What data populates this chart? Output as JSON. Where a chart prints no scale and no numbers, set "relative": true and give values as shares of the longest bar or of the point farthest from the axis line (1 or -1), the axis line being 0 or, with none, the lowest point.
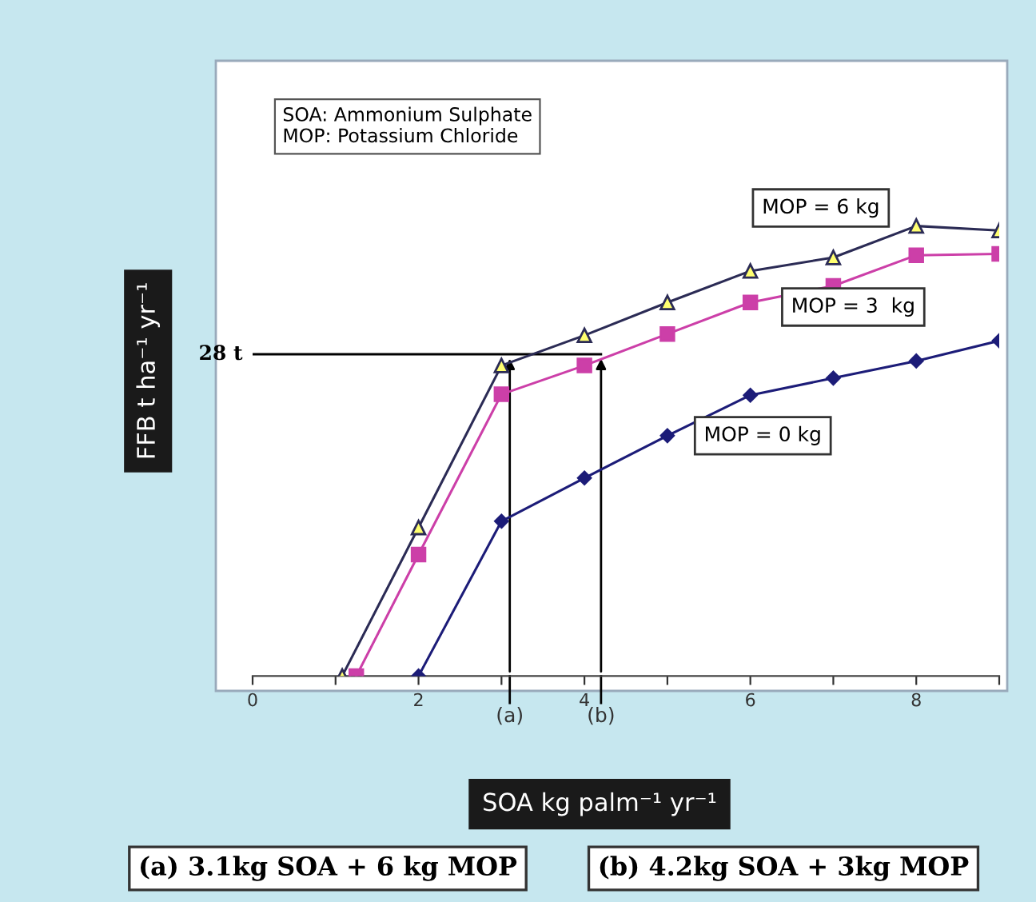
{
  "chart_data": {
    "type": "line",
    "relative": true,
    "xlabel": "SOA kg palm⁻¹ yr⁻¹",
    "ylabel": "FFB t ha⁻¹ yr⁻¹",
    "xlim": [
      0,
      9
    ],
    "xticks": [
      0,
      {
        "value": 1,
        "label": null
      },
      2,
      {
        "value": 3,
        "label": null
      },
      4,
      {
        "value": 5,
        "label": null
      },
      6,
      {
        "value": 7,
        "label": null
      },
      8,
      {
        "value": 9,
        "label": null
      }
    ],
    "legend": false,
    "grid": false,
    "line_style": "solid",
    "series": [
      {
        "name": "MOP = 6 kg",
        "color": "#2b2b55",
        "marker": "triangle",
        "x": [
          1.08,
          2,
          3,
          4,
          5,
          6,
          7,
          8,
          9
        ],
        "values": [
          0,
          0.33,
          0.69,
          0.757,
          0.83,
          0.9,
          0.93,
          1.0,
          0.99
        ]
      },
      {
        "name": "MOP = 3  kg",
        "color": "#cc3fa8",
        "marker": "square",
        "x": [
          1.25,
          2,
          3,
          4,
          5,
          6,
          7,
          8,
          9
        ],
        "values": [
          0,
          0.27,
          0.626,
          0.69,
          0.76,
          0.83,
          0.867,
          0.935,
          0.938
        ]
      },
      {
        "name": "MOP = 0 kg",
        "color": "#1c1c78",
        "marker": "diamond",
        "x": [
          2,
          3,
          4,
          5,
          6,
          7,
          8,
          9
        ],
        "values": [
          0,
          0.344,
          0.44,
          0.534,
          0.624,
          0.662,
          0.7,
          0.745
        ]
      }
    ],
    "ref_lines": [
      {
        "axis": "y",
        "value": 0.715,
        "label": "28 t",
        "color": "#000000"
      },
      {
        "axis": "x",
        "value": 3.1,
        "label": "(a)",
        "color": "#000000"
      },
      {
        "axis": "x",
        "value": 4.2,
        "label": "(b)",
        "color": "#000000"
      }
    ],
    "annotations": [
      "SOA: Ammonium Sulphate\nMOP: Potassium Chloride",
      "(a) 3.1kg SOA + 6 kg MOP",
      "(b) 4.2kg SOA + 3kg MOP"
    ]
  }
}
